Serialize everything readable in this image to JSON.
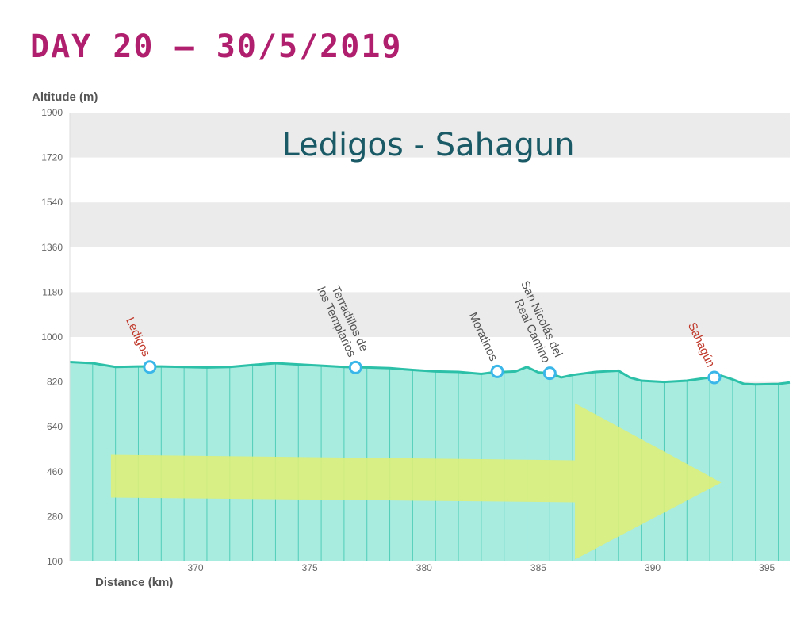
{
  "page": {
    "title": "DAY 20 — 30/5/2019",
    "title_color": "#b01f6e"
  },
  "chart_data": {
    "type": "area",
    "title": "Ledigos - Sahagun",
    "xlabel": "Distance (km)",
    "ylabel": "Altitude (m)",
    "xlim": [
      364.5,
      396
    ],
    "ylim": [
      100,
      1900
    ],
    "xticks": [
      370,
      375,
      380,
      385,
      390,
      395
    ],
    "yticks": [
      100,
      280,
      460,
      640,
      820,
      1000,
      1180,
      1360,
      1540,
      1720,
      1900
    ],
    "grid_bands": true,
    "series": [
      {
        "x": [
          364.5,
          365.5,
          366.5,
          367.5,
          368.5,
          369.5,
          370.5,
          371.5,
          372.5,
          373.5,
          374.5,
          375.5,
          376.5,
          377.5,
          378.5,
          379.5,
          380.5,
          381.5,
          382.5,
          383.0,
          383.5,
          384.0,
          384.5,
          385.0,
          385.5,
          386.0,
          386.5,
          387.5,
          388.5,
          389.0,
          389.5,
          390.5,
          391.5,
          392.5,
          393.0,
          393.5,
          394.0,
          394.5,
          395.5,
          396.0
        ],
        "y": [
          900,
          895,
          880,
          882,
          882,
          880,
          878,
          880,
          888,
          895,
          890,
          885,
          880,
          878,
          875,
          868,
          862,
          860,
          852,
          858,
          860,
          862,
          880,
          858,
          855,
          838,
          848,
          860,
          865,
          838,
          825,
          820,
          825,
          838,
          845,
          830,
          812,
          810,
          812,
          818
        ]
      }
    ],
    "waypoints": [
      {
        "name": "Ledigos",
        "x": 368.0,
        "y": 880,
        "color": "#c0392b"
      },
      {
        "name": "Terradillos de\nlos Templarios",
        "x": 377.0,
        "y": 878,
        "color": "#555555"
      },
      {
        "name": "Moratinos",
        "x": 383.2,
        "y": 862,
        "color": "#555555"
      },
      {
        "name": "San Nicolás del\nReal Camino",
        "x": 385.5,
        "y": 855,
        "color": "#555555"
      },
      {
        "name": "Sahagún",
        "x": 392.7,
        "y": 838,
        "color": "#c0392b"
      }
    ],
    "direction_arrow": "right",
    "colors": {
      "area": "#a8ece0",
      "line": "#2cc0a8",
      "marker": "#3ab7e8",
      "band": "#ebebeb",
      "arrow": "#dcf07a"
    }
  }
}
